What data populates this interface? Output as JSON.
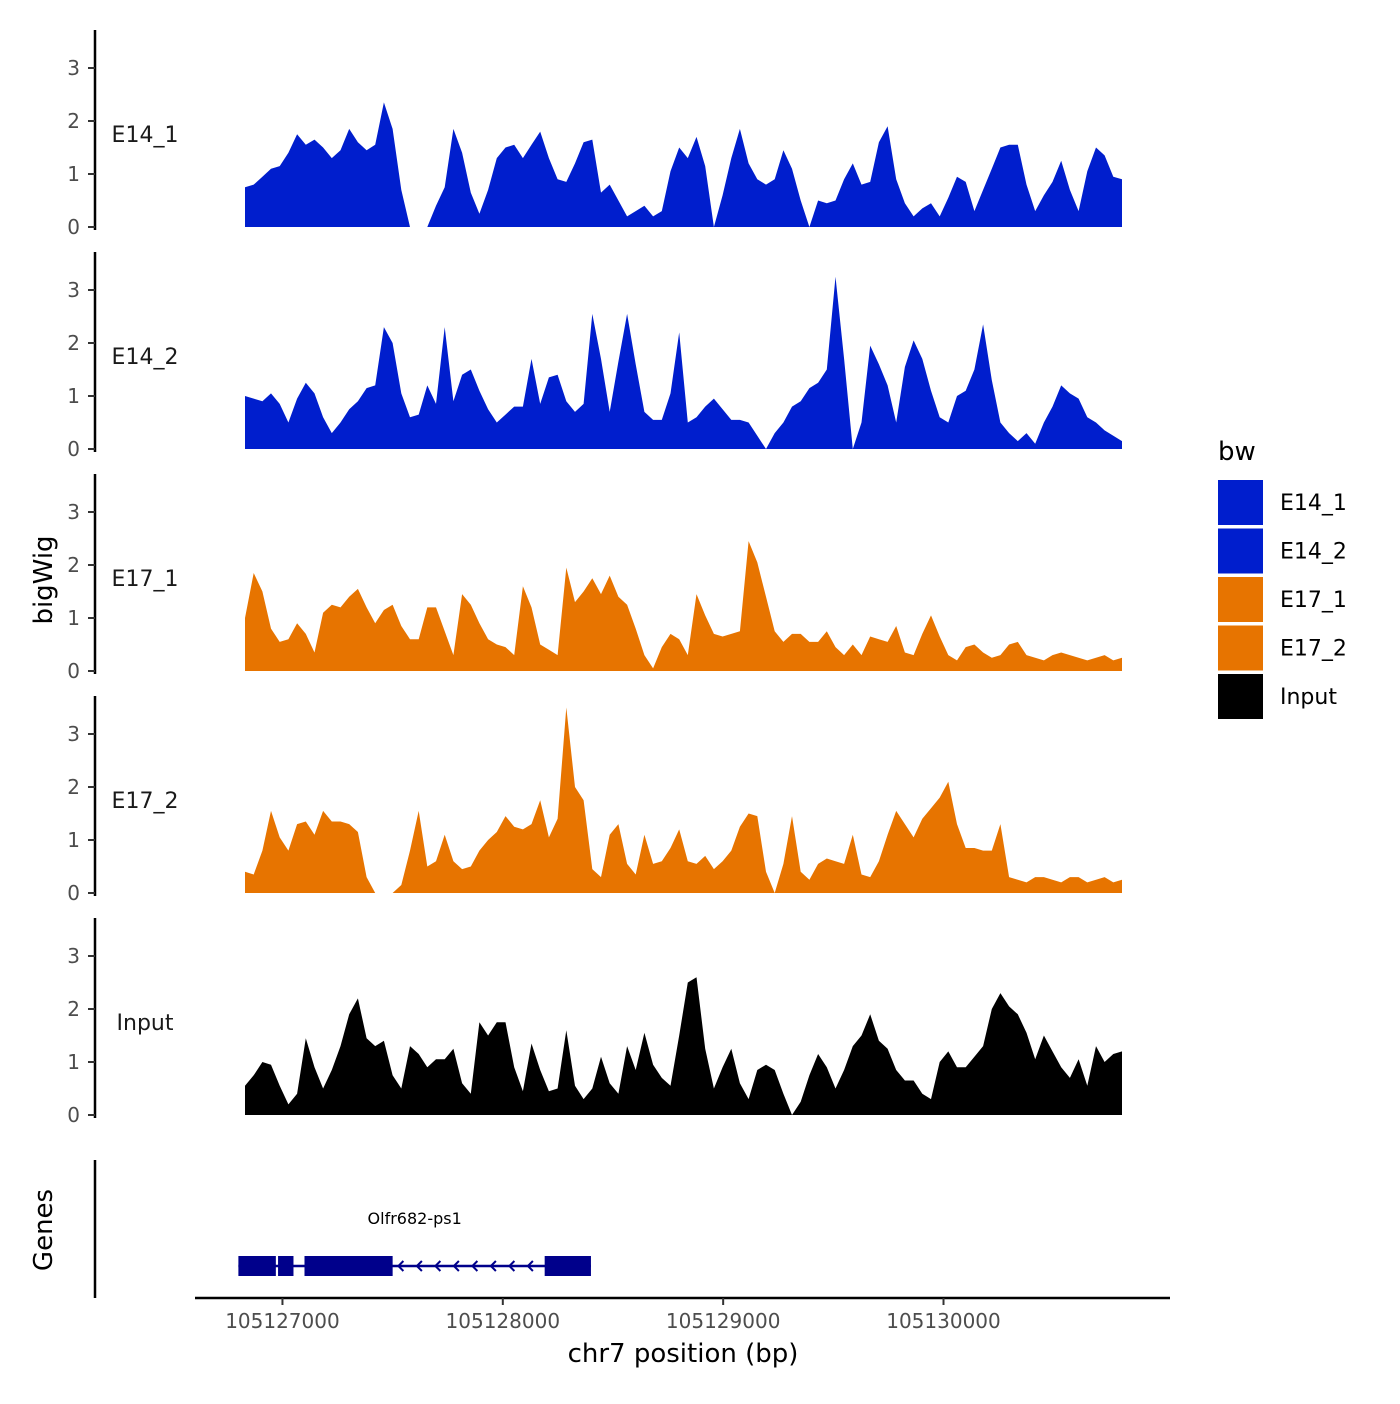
{
  "chart_data": {
    "type": "area",
    "title": "",
    "ylabel": "bigWig",
    "xlabel": "chr7 position (bp)",
    "genes_label": "Genes",
    "ylim": [
      0,
      3.7
    ],
    "y_ticks": [
      "0",
      "1",
      "2",
      "3"
    ],
    "xlim": [
      105126600,
      105131000
    ],
    "x_ticks": [
      {
        "value": 105127000,
        "label": "105127000"
      },
      {
        "value": 105128000,
        "label": "105128000"
      },
      {
        "value": 105129000,
        "label": "105129000"
      },
      {
        "value": 105130000,
        "label": "105130000"
      }
    ],
    "legend": {
      "title": "bw",
      "position": "right",
      "entries": [
        {
          "label": "E14_1",
          "color": "#001ECD"
        },
        {
          "label": "E14_2",
          "color": "#001ECD"
        },
        {
          "label": "E17_1",
          "color": "#E77400"
        },
        {
          "label": "E17_2",
          "color": "#E77400"
        },
        {
          "label": "Input",
          "color": "#000000"
        }
      ]
    },
    "series": [
      {
        "name": "E14_1",
        "color": "#001ECD",
        "x_start": 105126830,
        "x_end": 105130810,
        "values": [
          0.75,
          0.8,
          0.95,
          1.1,
          1.15,
          1.4,
          1.75,
          1.55,
          1.65,
          1.5,
          1.3,
          1.45,
          1.85,
          1.6,
          1.45,
          1.55,
          2.35,
          1.85,
          0.7,
          0,
          0,
          0,
          0.4,
          0.75,
          1.85,
          1.4,
          0.65,
          0.25,
          0.7,
          1.3,
          1.5,
          1.55,
          1.3,
          1.55,
          1.8,
          1.3,
          0.9,
          0.85,
          1.2,
          1.6,
          1.65,
          0.65,
          0.8,
          0.5,
          0.2,
          0.3,
          0.4,
          0.2,
          0.3,
          1.05,
          1.5,
          1.3,
          1.7,
          1.15,
          0,
          0.6,
          1.3,
          1.85,
          1.2,
          0.9,
          0.8,
          0.9,
          1.45,
          1.1,
          0.5,
          0,
          0.5,
          0.45,
          0.5,
          0.9,
          1.2,
          0.8,
          0.85,
          1.6,
          1.9,
          0.9,
          0.45,
          0.2,
          0.35,
          0.45,
          0.2,
          0.55,
          0.95,
          0.85,
          0.3,
          0.7,
          1.1,
          1.5,
          1.55,
          1.55,
          0.8,
          0.3,
          0.6,
          0.85,
          1.25,
          0.7,
          0.3,
          1.05,
          1.5,
          1.35,
          0.95,
          0.9
        ]
      },
      {
        "name": "E14_2",
        "color": "#001ECD",
        "x_start": 105126830,
        "x_end": 105130810,
        "values": [
          1.0,
          0.95,
          0.9,
          1.05,
          0.85,
          0.5,
          0.95,
          1.25,
          1.05,
          0.6,
          0.3,
          0.5,
          0.75,
          0.9,
          1.15,
          1.2,
          2.3,
          2.0,
          1.05,
          0.6,
          0.65,
          1.2,
          0.85,
          2.3,
          0.9,
          1.4,
          1.5,
          1.1,
          0.75,
          0.5,
          0.65,
          0.8,
          0.8,
          1.7,
          0.85,
          1.35,
          1.4,
          0.9,
          0.7,
          0.85,
          2.55,
          1.7,
          0.7,
          1.65,
          2.55,
          1.6,
          0.7,
          0.55,
          0.55,
          1.05,
          2.2,
          0.5,
          0.6,
          0.8,
          0.95,
          0.75,
          0.55,
          0.55,
          0.5,
          0.25,
          0,
          0.3,
          0.5,
          0.8,
          0.9,
          1.15,
          1.25,
          1.5,
          3.25,
          1.7,
          0,
          0.5,
          1.95,
          1.6,
          1.2,
          0.5,
          1.55,
          2.05,
          1.7,
          1.1,
          0.6,
          0.5,
          1.0,
          1.1,
          1.5,
          2.35,
          1.3,
          0.5,
          0.3,
          0.15,
          0.3,
          0.1,
          0.5,
          0.8,
          1.2,
          1.05,
          0.95,
          0.6,
          0.5,
          0.35,
          0.25,
          0.15
        ]
      },
      {
        "name": "E17_1",
        "color": "#E77400",
        "x_start": 105126830,
        "x_end": 105130810,
        "values": [
          1.0,
          1.85,
          1.5,
          0.8,
          0.55,
          0.6,
          0.9,
          0.7,
          0.35,
          1.1,
          1.25,
          1.2,
          1.4,
          1.55,
          1.2,
          0.9,
          1.15,
          1.25,
          0.85,
          0.6,
          0.6,
          1.2,
          1.2,
          0.75,
          0.3,
          1.45,
          1.25,
          0.9,
          0.6,
          0.5,
          0.45,
          0.3,
          1.6,
          1.2,
          0.5,
          0.4,
          0.3,
          1.95,
          1.3,
          1.5,
          1.75,
          1.45,
          1.8,
          1.4,
          1.25,
          0.8,
          0.3,
          0.05,
          0.45,
          0.7,
          0.6,
          0.3,
          1.45,
          1.05,
          0.7,
          0.65,
          0.7,
          0.75,
          2.45,
          2.05,
          1.4,
          0.75,
          0.55,
          0.7,
          0.7,
          0.55,
          0.55,
          0.75,
          0.45,
          0.3,
          0.5,
          0.3,
          0.65,
          0.6,
          0.55,
          0.85,
          0.35,
          0.3,
          0.7,
          1.05,
          0.65,
          0.3,
          0.2,
          0.45,
          0.5,
          0.35,
          0.25,
          0.3,
          0.5,
          0.55,
          0.3,
          0.25,
          0.2,
          0.3,
          0.35,
          0.3,
          0.25,
          0.2,
          0.25,
          0.3,
          0.2,
          0.25
        ]
      },
      {
        "name": "E17_2",
        "color": "#E77400",
        "x_start": 105126830,
        "x_end": 105130810,
        "values": [
          0.4,
          0.35,
          0.8,
          1.55,
          1.05,
          0.8,
          1.3,
          1.35,
          1.1,
          1.55,
          1.35,
          1.35,
          1.3,
          1.15,
          0.3,
          0,
          0,
          0,
          0.15,
          0.8,
          1.55,
          0.5,
          0.6,
          1.1,
          0.6,
          0.45,
          0.5,
          0.8,
          1.0,
          1.15,
          1.45,
          1.25,
          1.2,
          1.3,
          1.75,
          1.05,
          1.4,
          3.5,
          2.0,
          1.75,
          0.45,
          0.3,
          1.1,
          1.3,
          0.55,
          0.35,
          1.1,
          0.55,
          0.6,
          0.85,
          1.2,
          0.6,
          0.55,
          0.7,
          0.45,
          0.6,
          0.8,
          1.25,
          1.5,
          1.45,
          0.4,
          0,
          0.55,
          1.45,
          0.4,
          0.25,
          0.55,
          0.65,
          0.6,
          0.55,
          1.1,
          0.35,
          0.3,
          0.6,
          1.1,
          1.55,
          1.3,
          1.05,
          1.4,
          1.6,
          1.8,
          2.1,
          1.3,
          0.85,
          0.85,
          0.8,
          0.8,
          1.3,
          0.3,
          0.25,
          0.2,
          0.3,
          0.3,
          0.25,
          0.2,
          0.3,
          0.3,
          0.2,
          0.25,
          0.3,
          0.2,
          0.25
        ]
      },
      {
        "name": "Input",
        "color": "#000000",
        "x_start": 105126830,
        "x_end": 105130810,
        "values": [
          0.55,
          0.75,
          1.0,
          0.95,
          0.55,
          0.2,
          0.4,
          1.45,
          0.9,
          0.5,
          0.85,
          1.3,
          1.9,
          2.2,
          1.45,
          1.3,
          1.4,
          0.75,
          0.5,
          1.3,
          1.15,
          0.9,
          1.05,
          1.05,
          1.25,
          0.6,
          0.4,
          1.75,
          1.5,
          1.75,
          1.75,
          0.9,
          0.45,
          1.35,
          0.85,
          0.45,
          0.5,
          1.6,
          0.55,
          0.3,
          0.5,
          1.1,
          0.6,
          0.4,
          1.3,
          0.85,
          1.55,
          0.95,
          0.7,
          0.55,
          1.5,
          2.5,
          2.6,
          1.25,
          0.5,
          0.9,
          1.25,
          0.6,
          0.3,
          0.85,
          0.95,
          0.85,
          0.4,
          0,
          0.25,
          0.75,
          1.15,
          0.9,
          0.5,
          0.85,
          1.3,
          1.5,
          1.9,
          1.4,
          1.25,
          0.85,
          0.65,
          0.65,
          0.4,
          0.3,
          1.0,
          1.2,
          0.9,
          0.9,
          1.1,
          1.3,
          2.0,
          2.3,
          2.05,
          1.9,
          1.55,
          1.05,
          1.5,
          1.2,
          0.9,
          0.7,
          1.05,
          0.55,
          1.3,
          1.0,
          1.15,
          1.2
        ]
      }
    ],
    "gene": {
      "name": "Olfr682-ps1",
      "color": "#00008B",
      "strand": "-",
      "start": 105126800,
      "end": 105128400,
      "exons": [
        [
          105126800,
          105126970
        ],
        [
          105126980,
          105127050
        ],
        [
          105127100,
          105127500
        ],
        [
          105128190,
          105128400
        ]
      ]
    }
  }
}
